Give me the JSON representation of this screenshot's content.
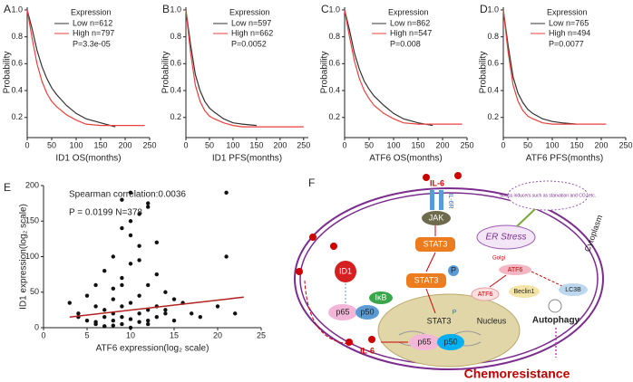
{
  "chart_data": [
    {
      "type": "line",
      "panel": "A",
      "xlabel": "ID1 OS(months)",
      "ylabel": "Probability",
      "legend_title": "Expression",
      "annotations": [
        "P=3.3e-05"
      ],
      "x": [
        0,
        10,
        20,
        30,
        40,
        50,
        60,
        80,
        100,
        120,
        150,
        180,
        210,
        240
      ],
      "series": [
        {
          "name": "Low n=612",
          "color": "#333333",
          "values": [
            1,
            0.86,
            0.7,
            0.58,
            0.49,
            0.42,
            0.37,
            0.29,
            0.23,
            0.19,
            0.16,
            0.13,
            null,
            null
          ]
        },
        {
          "name": "High n=797",
          "color": "#e8413c",
          "values": [
            1,
            0.79,
            0.6,
            0.47,
            0.38,
            0.32,
            0.28,
            0.22,
            0.18,
            0.15,
            0.14,
            0.14,
            0.14,
            0.14
          ]
        }
      ],
      "xlim": [
        0,
        250
      ],
      "ylim": [
        0.05,
        1.02
      ],
      "xticks": [
        0,
        50,
        100,
        150,
        200,
        250
      ],
      "yticks": [
        0.2,
        0.4,
        0.6,
        0.8,
        {
          "value": 1,
          "label": "1.0"
        }
      ]
    },
    {
      "type": "line",
      "panel": "B",
      "xlabel": "ID1 PFS(months)",
      "ylabel": "Probability",
      "legend_title": "Expression",
      "annotations": [
        "P=0.0052"
      ],
      "x": [
        0,
        10,
        20,
        30,
        40,
        50,
        60,
        80,
        100,
        120,
        150,
        180,
        210,
        250
      ],
      "series": [
        {
          "name": "Low n=597",
          "color": "#333333",
          "values": [
            1,
            0.74,
            0.52,
            0.4,
            0.32,
            0.27,
            0.24,
            0.19,
            0.16,
            0.15,
            0.14,
            null,
            null,
            null
          ]
        },
        {
          "name": "High n=662",
          "color": "#e8413c",
          "values": [
            1,
            0.68,
            0.44,
            0.32,
            0.25,
            0.21,
            0.19,
            0.16,
            0.14,
            0.13,
            0.13,
            0.13,
            0.13,
            0.13
          ]
        }
      ],
      "xlim": [
        0,
        260
      ],
      "ylim": [
        0.05,
        1.02
      ],
      "xticks": [
        0,
        50,
        100,
        150,
        200,
        250
      ],
      "yticks": [
        0.2,
        0.4,
        0.6,
        0.8,
        {
          "value": 1,
          "label": "1.0"
        }
      ]
    },
    {
      "type": "line",
      "panel": "C",
      "xlabel": "ATF6 OS(months)",
      "ylabel": "Probability",
      "legend_title": "Expression",
      "annotations": [
        "P=0.008"
      ],
      "x": [
        0,
        10,
        20,
        30,
        40,
        50,
        60,
        80,
        100,
        120,
        150,
        180,
        210,
        240
      ],
      "series": [
        {
          "name": "Low n=862",
          "color": "#333333",
          "values": [
            1,
            0.85,
            0.68,
            0.56,
            0.47,
            0.41,
            0.36,
            0.29,
            0.23,
            0.19,
            0.16,
            0.14,
            null,
            null
          ]
        },
        {
          "name": "High n=547",
          "color": "#e8413c",
          "values": [
            1,
            0.8,
            0.62,
            0.49,
            0.4,
            0.34,
            0.29,
            0.23,
            0.19,
            0.16,
            0.15,
            0.15,
            0.15,
            0.15
          ]
        }
      ],
      "xlim": [
        0,
        250
      ],
      "ylim": [
        0.05,
        1.02
      ],
      "xticks": [
        0,
        50,
        100,
        150,
        200,
        250
      ],
      "yticks": [
        0.2,
        0.4,
        0.6,
        0.8,
        {
          "value": 1,
          "label": "1.0"
        }
      ]
    },
    {
      "type": "line",
      "panel": "D",
      "xlabel": "ATF6 PFS(months)",
      "ylabel": "Probability",
      "legend_title": "Expression",
      "annotations": [
        "P=0.0077"
      ],
      "x": [
        0,
        10,
        20,
        30,
        40,
        50,
        60,
        80,
        100,
        120,
        150,
        180,
        210,
        240
      ],
      "series": [
        {
          "name": "Low n=765",
          "color": "#333333",
          "values": [
            1,
            0.73,
            0.5,
            0.38,
            0.31,
            0.26,
            0.23,
            0.19,
            0.17,
            0.16,
            0.15,
            null,
            null,
            null
          ]
        },
        {
          "name": "High n=494",
          "color": "#e8413c",
          "values": [
            1,
            0.68,
            0.44,
            0.32,
            0.25,
            0.21,
            0.19,
            0.16,
            0.15,
            0.15,
            0.15,
            0.15,
            0.15,
            null
          ]
        }
      ],
      "xlim": [
        0,
        250
      ],
      "ylim": [
        0.05,
        1.02
      ],
      "xticks": [
        0,
        50,
        100,
        150,
        200,
        250
      ],
      "yticks": [
        0.2,
        0.4,
        0.6,
        0.8,
        {
          "value": 1,
          "label": "1.0"
        }
      ]
    },
    {
      "type": "scatter",
      "panel": "E",
      "xlabel": "ATF6 expression(log₂ scale)",
      "ylabel": "ID1 expression(log₂ scale)",
      "annotations": [
        "Spearman correlation:0.0036",
        "P = 0.0199 N=378"
      ],
      "color": "#111111",
      "x": [
        3,
        4,
        5,
        5,
        6,
        6,
        6,
        7,
        7,
        7,
        7,
        8,
        8,
        8,
        8,
        8,
        9,
        9,
        9,
        9,
        9,
        10,
        10,
        10,
        10,
        10,
        11,
        11,
        11,
        11,
        12,
        12,
        12,
        12,
        13,
        13,
        13,
        14,
        14,
        15,
        15,
        16,
        17,
        18,
        20,
        21,
        22,
        9,
        10,
        11,
        12,
        8,
        7,
        6,
        10,
        13,
        11,
        14,
        9,
        12,
        21,
        4
      ],
      "y": [
        35,
        20,
        10,
        45,
        5,
        30,
        60,
        15,
        25,
        80,
        2,
        10,
        40,
        100,
        20,
        55,
        5,
        30,
        70,
        15,
        140,
        12,
        35,
        90,
        0,
        190,
        20,
        45,
        115,
        8,
        25,
        60,
        170,
        10,
        30,
        75,
        15,
        20,
        50,
        40,
        10,
        35,
        20,
        15,
        30,
        100,
        20,
        180,
        150,
        160,
        5,
        3,
        2,
        8,
        130,
        120,
        95,
        25,
        60,
        175,
        190,
        15
      ],
      "fit_line": {
        "x": [
          3,
          23
        ],
        "y": [
          15,
          43
        ],
        "color": "#b22222"
      },
      "xlim": [
        0,
        25
      ],
      "ylim": [
        0,
        200
      ],
      "xticks": [
        0,
        5,
        10,
        15,
        20,
        25
      ],
      "yticks": [
        0,
        50,
        100,
        150,
        200
      ]
    }
  ],
  "diagram": {
    "panel": "F",
    "labels": {
      "il6_top": "IL-6",
      "il6r": "IL-6R",
      "jak": "JAK",
      "stat3_a": "STAT3",
      "stat3_b": "STAT3",
      "p_a": "P",
      "er_stress": "ER Stress",
      "stress_inducers": "Stress inducers such as starvation and CO₂ etc.",
      "cytoplasm": "Cytoplasm",
      "golgi": "Golgi",
      "atf6_golgi": "ATF6",
      "lc3b": "LC3B",
      "beclin1": "Beclin1",
      "autophagy": "Autophagy",
      "id1": "ID1",
      "ikb": "IκB",
      "p65_a": "p65",
      "p50_a": "p50",
      "atf6_b": "ATF6",
      "stat3_nuc": "STAT3",
      "p_b": "P",
      "nucleus": "Nucleus",
      "p65_b": "p65",
      "p50_b": "p50",
      "il6_bottom": "IL-6",
      "chemoresistance": "Chemoresistance"
    }
  }
}
